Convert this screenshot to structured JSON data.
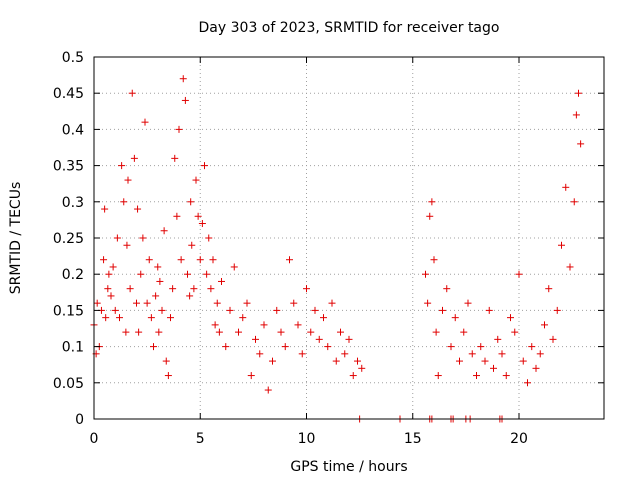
{
  "chart_data": {
    "type": "scatter",
    "title": "Day 303 of 2023, SRMTID for receiver tago",
    "xlabel": "GPS time / hours",
    "ylabel": "SRMTID / TECUs",
    "xlim": [
      0,
      24
    ],
    "ylim": [
      0,
      0.5
    ],
    "x_ticks": [
      0,
      5,
      10,
      15,
      20
    ],
    "x_tick_labels": [
      "0",
      "5",
      "10",
      "15",
      "20"
    ],
    "y_ticks": [
      0,
      0.05,
      0.1,
      0.15,
      0.2,
      0.25,
      0.3,
      0.35,
      0.4,
      0.45,
      0.5
    ],
    "y_tick_labels": [
      "0",
      "0.05",
      "0.1",
      "0.15",
      "0.2",
      "0.25",
      "0.3",
      "0.35",
      "0.4",
      "0.45",
      "0.5"
    ],
    "grid": true,
    "marker": "+",
    "color": "#e00000",
    "series": [
      {
        "name": "SRMTID",
        "x": [
          0.0,
          0.1,
          0.15,
          0.25,
          0.35,
          0.45,
          0.5,
          0.55,
          0.65,
          0.7,
          0.8,
          0.9,
          1.0,
          1.1,
          1.2,
          1.3,
          1.4,
          1.5,
          1.55,
          1.6,
          1.7,
          1.8,
          1.9,
          2.0,
          2.05,
          2.1,
          2.2,
          2.3,
          2.4,
          2.5,
          2.6,
          2.7,
          2.8,
          2.9,
          3.0,
          3.05,
          3.1,
          3.2,
          3.3,
          3.4,
          3.5,
          3.6,
          3.7,
          3.8,
          3.9,
          4.0,
          4.1,
          4.2,
          4.3,
          4.4,
          4.5,
          4.55,
          4.6,
          4.7,
          4.8,
          4.9,
          5.0,
          5.1,
          5.2,
          5.3,
          5.4,
          5.5,
          5.6,
          5.7,
          5.8,
          5.9,
          6.0,
          6.2,
          6.4,
          6.6,
          6.8,
          7.0,
          7.2,
          7.4,
          7.6,
          7.8,
          8.0,
          8.2,
          8.4,
          8.6,
          8.8,
          9.0,
          9.2,
          9.4,
          9.6,
          9.8,
          10.0,
          10.2,
          10.4,
          10.6,
          10.8,
          11.0,
          11.2,
          11.4,
          11.6,
          11.8,
          12.0,
          12.2,
          12.4,
          12.6,
          15.6,
          15.7,
          15.8,
          15.9,
          16.0,
          16.1,
          16.2,
          16.4,
          16.6,
          16.8,
          17.0,
          17.2,
          17.4,
          17.6,
          17.8,
          18.0,
          18.2,
          18.4,
          18.6,
          18.8,
          19.0,
          19.2,
          19.4,
          19.6,
          19.8,
          20.0,
          20.2,
          20.4,
          20.6,
          20.8,
          21.0,
          21.2,
          21.4,
          21.6,
          21.8,
          22.0,
          22.2,
          22.4,
          22.6,
          22.7,
          22.8,
          22.9
        ],
        "y": [
          0.13,
          0.09,
          0.16,
          0.1,
          0.15,
          0.22,
          0.29,
          0.14,
          0.18,
          0.2,
          0.17,
          0.21,
          0.15,
          0.25,
          0.14,
          0.35,
          0.3,
          0.12,
          0.24,
          0.33,
          0.18,
          0.45,
          0.36,
          0.16,
          0.29,
          0.12,
          0.2,
          0.25,
          0.41,
          0.16,
          0.22,
          0.14,
          0.1,
          0.17,
          0.21,
          0.12,
          0.19,
          0.15,
          0.26,
          0.08,
          0.06,
          0.14,
          0.18,
          0.36,
          0.28,
          0.4,
          0.22,
          0.47,
          0.44,
          0.2,
          0.17,
          0.3,
          0.24,
          0.18,
          0.33,
          0.28,
          0.22,
          0.27,
          0.35,
          0.2,
          0.25,
          0.18,
          0.22,
          0.13,
          0.16,
          0.12,
          0.19,
          0.1,
          0.15,
          0.21,
          0.12,
          0.14,
          0.16,
          0.06,
          0.11,
          0.09,
          0.13,
          0.04,
          0.08,
          0.15,
          0.12,
          0.1,
          0.22,
          0.16,
          0.13,
          0.09,
          0.18,
          0.12,
          0.15,
          0.11,
          0.14,
          0.1,
          0.16,
          0.08,
          0.12,
          0.09,
          0.11,
          0.06,
          0.08,
          0.07,
          0.2,
          0.16,
          0.28,
          0.3,
          0.22,
          0.12,
          0.06,
          0.15,
          0.18,
          0.1,
          0.14,
          0.08,
          0.12,
          0.16,
          0.09,
          0.06,
          0.1,
          0.08,
          0.15,
          0.07,
          0.11,
          0.09,
          0.06,
          0.14,
          0.12,
          0.2,
          0.08,
          0.05,
          0.1,
          0.07,
          0.09,
          0.13,
          0.18,
          0.11,
          0.15,
          0.24,
          0.32,
          0.21,
          0.3,
          0.42,
          0.45,
          0.38
        ],
        "zero_points_x": [
          12.5,
          14.4,
          15.8,
          15.9,
          16.8,
          16.9,
          17.5,
          17.7,
          19.1,
          19.2
        ]
      }
    ]
  }
}
